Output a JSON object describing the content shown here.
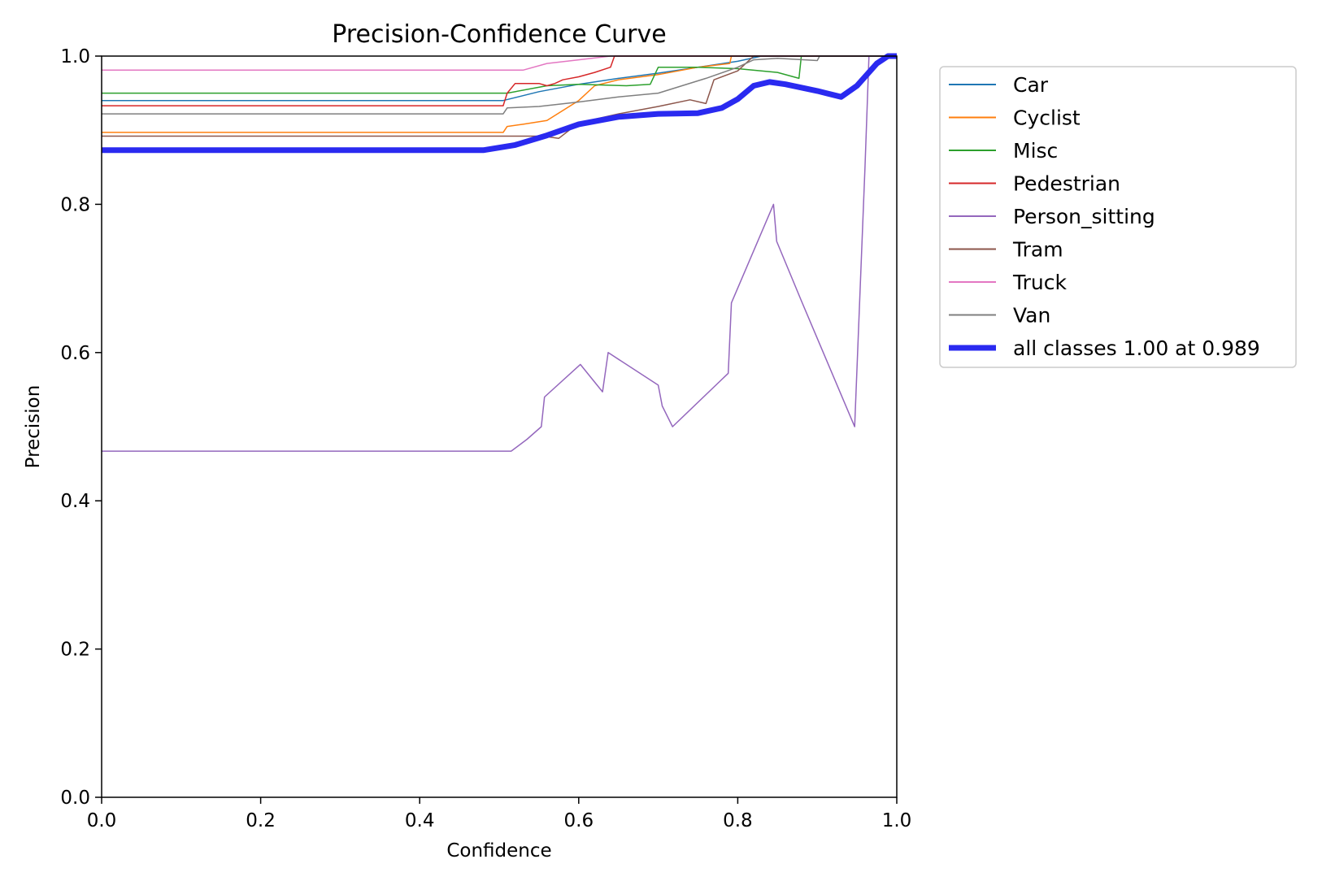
{
  "chart_data": {
    "type": "line",
    "title": "Precision-Confidence Curve",
    "xlabel": "Confidence",
    "ylabel": "Precision",
    "xlim": [
      0,
      1
    ],
    "ylim": [
      0,
      1
    ],
    "x_ticks": [
      "0.0",
      "0.2",
      "0.4",
      "0.6",
      "0.8",
      "1.0"
    ],
    "y_ticks": [
      "0.0",
      "0.2",
      "0.4",
      "0.6",
      "0.8",
      "1.0"
    ],
    "grid": false,
    "legend_position": "outside upper right",
    "series": [
      {
        "name": "Car",
        "color": "#1f77b4",
        "width": 1.5,
        "points": [
          [
            0,
            0.94
          ],
          [
            0.505,
            0.94
          ],
          [
            0.55,
            0.952
          ],
          [
            0.6,
            0.962
          ],
          [
            0.65,
            0.97
          ],
          [
            0.7,
            0.977
          ],
          [
            0.75,
            0.985
          ],
          [
            0.8,
            0.993
          ],
          [
            0.83,
            1.0
          ],
          [
            1.0,
            1.0
          ]
        ]
      },
      {
        "name": "Cyclist",
        "color": "#ff7f0e",
        "width": 1.5,
        "points": [
          [
            0,
            0.897
          ],
          [
            0.505,
            0.897
          ],
          [
            0.51,
            0.905
          ],
          [
            0.53,
            0.908
          ],
          [
            0.56,
            0.913
          ],
          [
            0.6,
            0.94
          ],
          [
            0.62,
            0.96
          ],
          [
            0.65,
            0.968
          ],
          [
            0.7,
            0.975
          ],
          [
            0.75,
            0.985
          ],
          [
            0.79,
            0.99
          ],
          [
            0.792,
            1.0
          ],
          [
            1.0,
            1.0
          ]
        ]
      },
      {
        "name": "Misc",
        "color": "#2ca02c",
        "width": 1.5,
        "points": [
          [
            0,
            0.95
          ],
          [
            0.51,
            0.95
          ],
          [
            0.56,
            0.96
          ],
          [
            0.6,
            0.962
          ],
          [
            0.66,
            0.96
          ],
          [
            0.69,
            0.962
          ],
          [
            0.7,
            0.985
          ],
          [
            0.75,
            0.985
          ],
          [
            0.8,
            0.983
          ],
          [
            0.85,
            0.978
          ],
          [
            0.877,
            0.97
          ],
          [
            0.88,
            1.0
          ],
          [
            1.0,
            1.0
          ]
        ]
      },
      {
        "name": "Pedestrian",
        "color": "#d62728",
        "width": 1.5,
        "points": [
          [
            0,
            0.933
          ],
          [
            0.505,
            0.933
          ],
          [
            0.51,
            0.95
          ],
          [
            0.52,
            0.963
          ],
          [
            0.55,
            0.963
          ],
          [
            0.56,
            0.96
          ],
          [
            0.57,
            0.963
          ],
          [
            0.58,
            0.968
          ],
          [
            0.6,
            0.972
          ],
          [
            0.62,
            0.978
          ],
          [
            0.64,
            0.985
          ],
          [
            0.645,
            1.0
          ],
          [
            1.0,
            1.0
          ]
        ]
      },
      {
        "name": "Person_sitting",
        "color": "#9467bd",
        "width": 1.5,
        "points": [
          [
            0,
            0.467
          ],
          [
            0.515,
            0.467
          ],
          [
            0.535,
            0.483
          ],
          [
            0.553,
            0.5
          ],
          [
            0.557,
            0.54
          ],
          [
            0.602,
            0.584
          ],
          [
            0.63,
            0.547
          ],
          [
            0.637,
            0.6
          ],
          [
            0.7,
            0.556
          ],
          [
            0.705,
            0.528
          ],
          [
            0.718,
            0.5
          ],
          [
            0.788,
            0.572
          ],
          [
            0.792,
            0.667
          ],
          [
            0.845,
            0.8
          ],
          [
            0.849,
            0.75
          ],
          [
            0.88,
            0.67
          ],
          [
            0.947,
            0.5
          ],
          [
            0.96,
            0.85
          ],
          [
            0.965,
            1.0
          ],
          [
            1.0,
            1.0
          ]
        ]
      },
      {
        "name": "Tram",
        "color": "#8c564b",
        "width": 1.5,
        "points": [
          [
            0,
            0.892
          ],
          [
            0.555,
            0.892
          ],
          [
            0.575,
            0.889
          ],
          [
            0.6,
            0.91
          ],
          [
            0.65,
            0.922
          ],
          [
            0.7,
            0.932
          ],
          [
            0.74,
            0.941
          ],
          [
            0.76,
            0.936
          ],
          [
            0.77,
            0.968
          ],
          [
            0.8,
            0.98
          ],
          [
            0.82,
            1.0
          ],
          [
            1.0,
            1.0
          ]
        ]
      },
      {
        "name": "Truck",
        "color": "#e377c2",
        "width": 1.5,
        "points": [
          [
            0,
            0.981
          ],
          [
            0.53,
            0.981
          ],
          [
            0.56,
            0.99
          ],
          [
            0.6,
            0.995
          ],
          [
            0.64,
            1.0
          ],
          [
            1.0,
            1.0
          ]
        ]
      },
      {
        "name": "Van",
        "color": "#7f7f7f",
        "width": 1.5,
        "points": [
          [
            0,
            0.922
          ],
          [
            0.505,
            0.922
          ],
          [
            0.51,
            0.93
          ],
          [
            0.55,
            0.932
          ],
          [
            0.6,
            0.938
          ],
          [
            0.65,
            0.945
          ],
          [
            0.7,
            0.95
          ],
          [
            0.73,
            0.96
          ],
          [
            0.76,
            0.97
          ],
          [
            0.8,
            0.985
          ],
          [
            0.82,
            0.995
          ],
          [
            0.85,
            0.997
          ],
          [
            0.9,
            0.994
          ],
          [
            0.903,
            1.0
          ],
          [
            1.0,
            1.0
          ]
        ]
      },
      {
        "name": "all classes 1.00 at 0.989",
        "color": "#2a2af0",
        "width": 7,
        "points": [
          [
            0,
            0.873
          ],
          [
            0.48,
            0.873
          ],
          [
            0.52,
            0.88
          ],
          [
            0.56,
            0.893
          ],
          [
            0.6,
            0.908
          ],
          [
            0.65,
            0.918
          ],
          [
            0.7,
            0.922
          ],
          [
            0.75,
            0.923
          ],
          [
            0.78,
            0.93
          ],
          [
            0.8,
            0.942
          ],
          [
            0.82,
            0.96
          ],
          [
            0.84,
            0.965
          ],
          [
            0.86,
            0.962
          ],
          [
            0.9,
            0.953
          ],
          [
            0.93,
            0.945
          ],
          [
            0.95,
            0.96
          ],
          [
            0.975,
            0.99
          ],
          [
            0.989,
            1.0
          ],
          [
            1.0,
            1.0
          ]
        ]
      }
    ]
  }
}
